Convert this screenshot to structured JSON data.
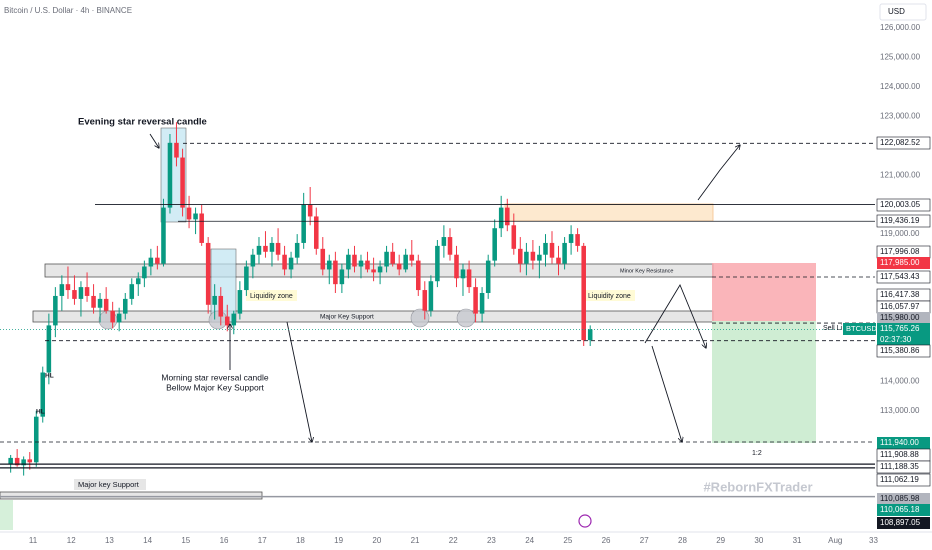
{
  "header": {
    "symbol": "Bitcoin / U.S. Dollar · 4h · BINANCE",
    "currency": "USD",
    "watermark": "#RebornFXTrader"
  },
  "chart_data": {
    "type": "candlestick",
    "x": [
      10.33,
      10.5,
      10.67,
      10.83,
      11,
      11.17,
      11.33,
      11.5,
      11.67,
      11.83,
      12,
      12.17,
      12.33,
      12.5,
      12.67,
      12.83,
      13,
      13.17,
      13.33,
      13.5,
      13.67,
      13.83,
      14,
      14.17,
      14.33,
      14.5,
      14.67,
      14.83,
      15,
      15.17,
      15.33,
      15.5,
      15.67,
      15.83,
      16,
      16.17,
      16.33,
      16.5,
      16.67,
      16.83,
      17,
      17.17,
      17.33,
      17.5,
      17.67,
      17.83,
      18,
      18.17,
      18.33,
      18.5,
      18.67,
      18.83,
      19,
      19.17,
      19.33,
      19.5,
      19.67,
      19.83,
      20,
      20.17,
      20.33,
      20.5,
      20.67,
      20.83,
      21,
      21.17,
      21.33,
      21.5,
      21.67,
      21.83,
      22,
      22.17,
      22.33,
      22.5,
      22.67,
      22.83,
      23,
      23.17,
      23.33,
      23.5,
      23.67,
      23.83,
      24,
      24.17,
      24.33,
      24.5,
      24.67,
      24.83,
      25,
      25.17,
      25.33,
      25.5
    ],
    "ohlc": [
      [
        111200,
        111500,
        110900,
        111400
      ],
      [
        111400,
        111700,
        111100,
        111150
      ],
      [
        111150,
        111450,
        110800,
        111350
      ],
      [
        111350,
        111600,
        111000,
        111250
      ],
      [
        111250,
        113000,
        111100,
        112800
      ],
      [
        112800,
        114500,
        112600,
        114300
      ],
      [
        114300,
        116300,
        113900,
        115900
      ],
      [
        115900,
        117200,
        115500,
        116900
      ],
      [
        116900,
        117600,
        116400,
        117300
      ],
      [
        117300,
        117900,
        116800,
        117100
      ],
      [
        117100,
        117600,
        116600,
        116800
      ],
      [
        116800,
        117400,
        116200,
        117200
      ],
      [
        117200,
        117700,
        116700,
        116900
      ],
      [
        116900,
        117300,
        116300,
        116500
      ],
      [
        116500,
        117000,
        116000,
        116800
      ],
      [
        116800,
        117200,
        116300,
        116400
      ],
      [
        116400,
        116700,
        115800,
        116000
      ],
      [
        116000,
        116500,
        115700,
        116300
      ],
      [
        116300,
        117000,
        116100,
        116800
      ],
      [
        116800,
        117500,
        116600,
        117300
      ],
      [
        117300,
        117700,
        116900,
        117500
      ],
      [
        117500,
        118100,
        117200,
        117900
      ],
      [
        117900,
        118500,
        117600,
        118200
      ],
      [
        118200,
        118600,
        117800,
        118000
      ],
      [
        118000,
        120200,
        117900,
        119900
      ],
      [
        119900,
        122400,
        119700,
        122100
      ],
      [
        122100,
        122800,
        121300,
        121600
      ],
      [
        121600,
        121900,
        119600,
        119900
      ],
      [
        119900,
        120300,
        119200,
        119500
      ],
      [
        119500,
        119900,
        119000,
        119700
      ],
      [
        119700,
        120000,
        118600,
        118700
      ],
      [
        118700,
        118900,
        116300,
        116600
      ],
      [
        116600,
        117300,
        116100,
        116900
      ],
      [
        116900,
        117200,
        115900,
        116200
      ],
      [
        116200,
        116600,
        115700,
        115900
      ],
      [
        115900,
        116400,
        115600,
        116300
      ],
      [
        116300,
        117400,
        116100,
        117100
      ],
      [
        117100,
        118100,
        116900,
        117900
      ],
      [
        117900,
        118500,
        117500,
        118300
      ],
      [
        118300,
        118900,
        118000,
        118600
      ],
      [
        118600,
        119100,
        118200,
        118400
      ],
      [
        118400,
        118900,
        117900,
        118700
      ],
      [
        118700,
        119200,
        118100,
        118300
      ],
      [
        118300,
        118600,
        117600,
        117800
      ],
      [
        117800,
        118400,
        117500,
        118200
      ],
      [
        118200,
        119000,
        118000,
        118700
      ],
      [
        118700,
        120400,
        118500,
        120000
      ],
      [
        120000,
        120600,
        119300,
        119600
      ],
      [
        119600,
        119900,
        118300,
        118500
      ],
      [
        118500,
        118900,
        117600,
        117800
      ],
      [
        117800,
        118300,
        117300,
        118100
      ],
      [
        118100,
        118400,
        117000,
        117300
      ],
      [
        117300,
        118000,
        117000,
        117800
      ],
      [
        117800,
        118500,
        117500,
        118300
      ],
      [
        118300,
        118600,
        117700,
        117900
      ],
      [
        117900,
        118300,
        117500,
        118100
      ],
      [
        118100,
        118400,
        117700,
        117800
      ],
      [
        117800,
        118200,
        117400,
        117700
      ],
      [
        117700,
        118100,
        117300,
        117900
      ],
      [
        117900,
        118600,
        117700,
        118400
      ],
      [
        118400,
        118700,
        117900,
        118000
      ],
      [
        118000,
        118300,
        117600,
        117800
      ],
      [
        117800,
        118500,
        117700,
        118300
      ],
      [
        118300,
        118800,
        117900,
        118100
      ],
      [
        118100,
        118300,
        116900,
        117100
      ],
      [
        117100,
        117400,
        116100,
        116400
      ],
      [
        116400,
        117600,
        116200,
        117400
      ],
      [
        117400,
        118800,
        117200,
        118600
      ],
      [
        118600,
        119300,
        118200,
        118900
      ],
      [
        118900,
        119200,
        118100,
        118300
      ],
      [
        118300,
        118600,
        117200,
        117500
      ],
      [
        117500,
        118000,
        116900,
        117800
      ],
      [
        117800,
        118100,
        117000,
        117200
      ],
      [
        117200,
        117500,
        116000,
        116300
      ],
      [
        116300,
        117200,
        116000,
        117000
      ],
      [
        117000,
        118300,
        116800,
        118100
      ],
      [
        118100,
        119500,
        117900,
        119200
      ],
      [
        119200,
        120300,
        118900,
        119900
      ],
      [
        119900,
        120200,
        119100,
        119300
      ],
      [
        119300,
        119700,
        118300,
        118500
      ],
      [
        118500,
        118900,
        117700,
        118000
      ],
      [
        118000,
        118700,
        117600,
        118400
      ],
      [
        118400,
        118800,
        117800,
        118100
      ],
      [
        118100,
        118600,
        117500,
        118300
      ],
      [
        118300,
        119000,
        117900,
        118700
      ],
      [
        118700,
        119100,
        118000,
        118200
      ],
      [
        118200,
        118600,
        117600,
        118000
      ],
      [
        118000,
        118900,
        117800,
        118700
      ],
      [
        118700,
        119300,
        118300,
        119000
      ],
      [
        119000,
        119200,
        118400,
        118600
      ],
      [
        118600,
        118700,
        115200,
        115400
      ],
      [
        115400,
        115900,
        115200,
        115765.26
      ]
    ],
    "up_color": "#089981",
    "down_color": "#f23645",
    "xlim": [
      10.136,
      33.04
    ],
    "xticks": [
      11,
      12,
      13,
      14,
      15,
      16,
      17,
      18,
      19,
      20,
      21,
      22,
      23,
      24,
      25,
      26,
      27,
      28,
      29,
      30,
      31,
      {
        "value": 32,
        "label": "Aug"
      },
      33
    ],
    "ylim": [
      108850,
      126950
    ],
    "yticks": [
      {
        "value": 126000,
        "label": "126,000.00"
      },
      {
        "value": 125000,
        "label": "125,000.00"
      },
      {
        "value": 124000,
        "label": "124,000.00"
      },
      {
        "value": 123000,
        "label": "123,000.00"
      },
      {
        "value": 121000,
        "label": "121,000.00"
      },
      {
        "value": 119000,
        "label": "119,000.00"
      },
      {
        "value": 114000,
        "label": "114,000.00"
      },
      {
        "value": 113000,
        "label": "113,000.00"
      }
    ],
    "levels": [
      {
        "value": 122082.52,
        "label": "122,082.52"
      },
      {
        "value": 120003.05,
        "label": "120,003.05"
      },
      {
        "value": 119436.19,
        "label": "119,436.19"
      },
      {
        "value": 117996.08,
        "label": "117,996.08"
      },
      {
        "value": 117985.0,
        "label": "117,985.00",
        "color": "#f23645"
      },
      {
        "value": 117543.43,
        "label": "117,543.43"
      },
      {
        "value": 116417.38,
        "label": "116,417.38"
      },
      {
        "value": 116057.97,
        "label": "116,057.97"
      },
      {
        "value": 115980.0,
        "label": "115,980.00",
        "color": "#b2b5be"
      },
      {
        "value": 115765.26,
        "label": "115,765.26",
        "color": "#089981",
        "symbol": "BTCUSD",
        "countdown": "02:37:30"
      },
      {
        "value": 115380.86,
        "label": "115,380.86"
      },
      {
        "value": 111940.0,
        "label": "111,940.00",
        "color": "#089981"
      },
      {
        "value": 111908.88,
        "label": "111,908.88"
      },
      {
        "value": 111188.35,
        "label": "111,188.35"
      },
      {
        "value": 111062.19,
        "label": "111,062.19"
      },
      {
        "value": 110085.98,
        "label": "110,085.98",
        "color": "#b2b5be"
      },
      {
        "value": 110065.18,
        "label": "110,065.18",
        "color": "#089981"
      },
      {
        "value": 108897.05,
        "label": "108,897.05",
        "color": "#131722"
      }
    ],
    "annotations": [
      "Evening star reversal candle",
      "Morning star reversal candle",
      "Bellow Major Key Support",
      "Liquidity zone",
      "Liquidity zone",
      "Major Key Support",
      "Minor Key Resistance",
      "Major key Support",
      "HL",
      "HL",
      "1:2",
      "Sell Li"
    ]
  }
}
